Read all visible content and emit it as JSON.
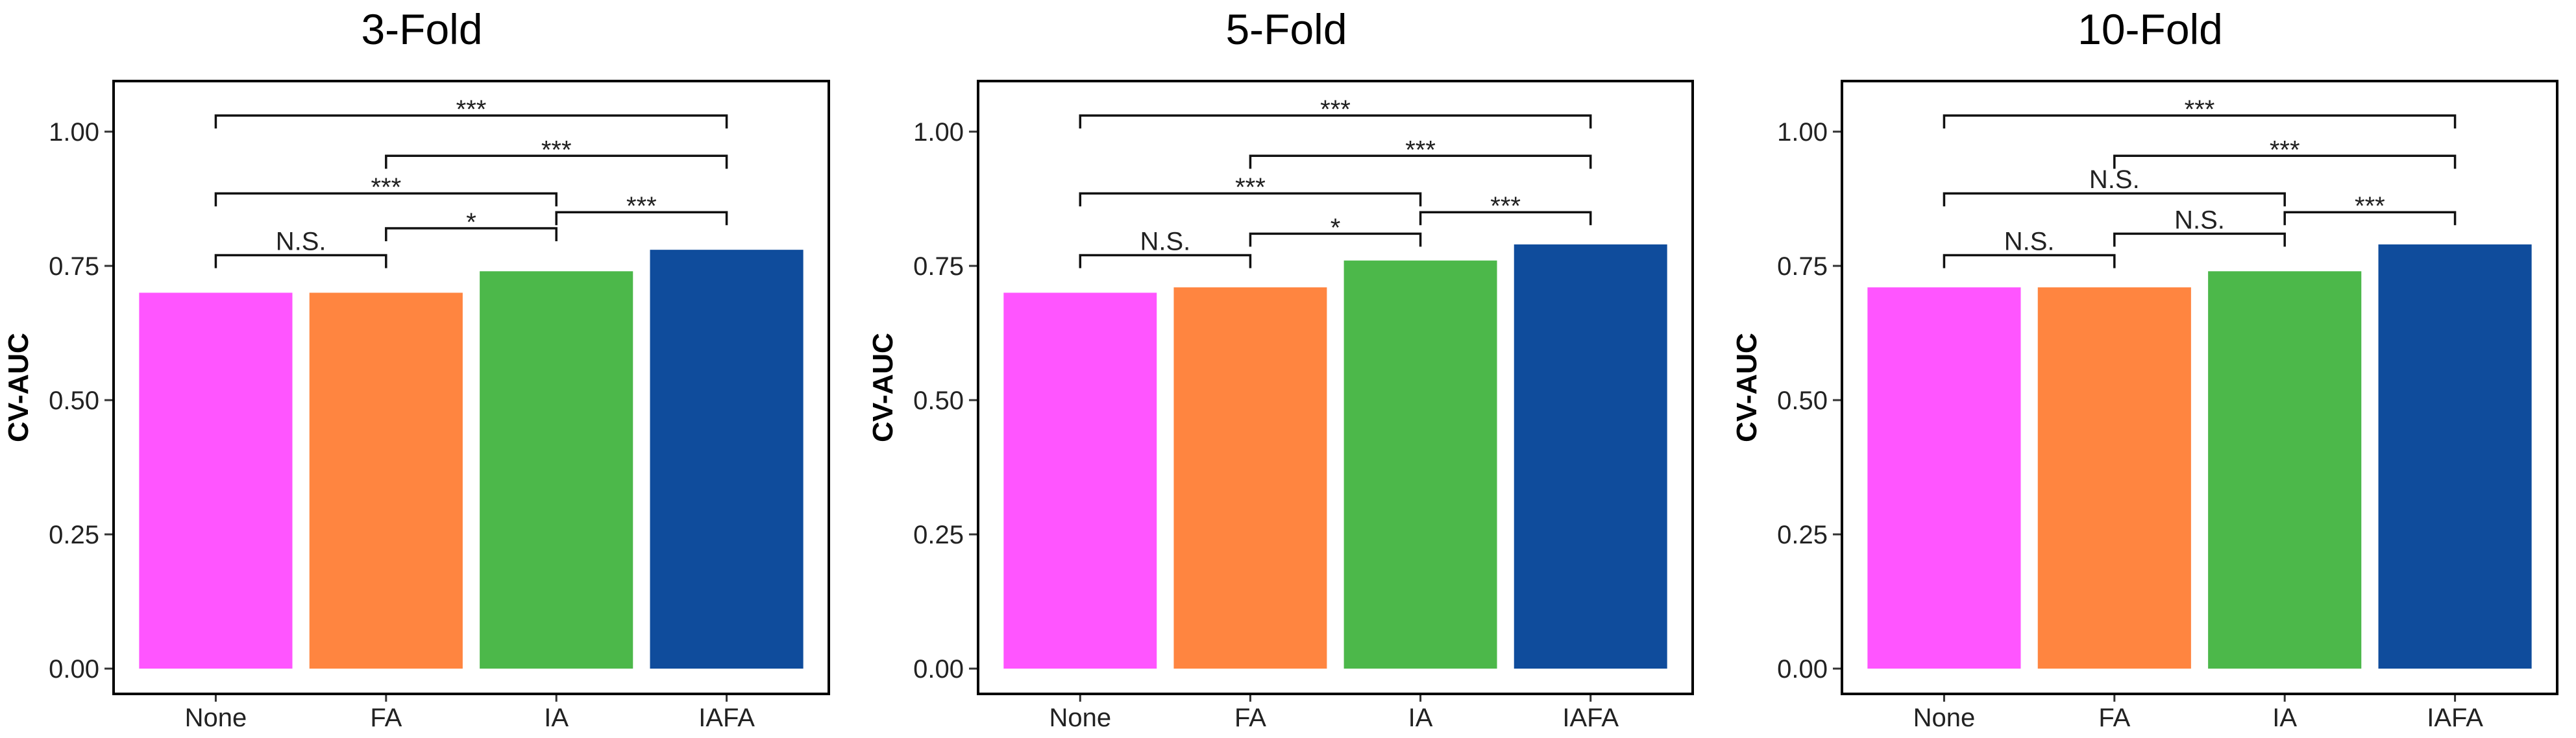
{
  "chart_data": [
    {
      "type": "bar",
      "title": "3-Fold",
      "ylabel": "CV-AUC",
      "xlabel": "",
      "ylim": [
        0,
        1.09
      ],
      "yticks": [
        "0.00",
        "0.25",
        "0.50",
        "0.75",
        "1.00"
      ],
      "categories": [
        "None",
        "FA",
        "IA",
        "IAFA"
      ],
      "values": [
        0.7,
        0.7,
        0.74,
        0.78
      ],
      "colors": [
        "#FF55FF",
        "#FF8540",
        "#4CB84A",
        "#0F4C9C"
      ],
      "comparisons": [
        {
          "from": "None",
          "to": "FA",
          "label": "N.S.",
          "y": 0.77
        },
        {
          "from": "FA",
          "to": "IA",
          "label": "*",
          "y": 0.82
        },
        {
          "from": "IA",
          "to": "IAFA",
          "label": "***",
          "y": 0.85
        },
        {
          "from": "None",
          "to": "IA",
          "label": "***",
          "y": 0.885
        },
        {
          "from": "FA",
          "to": "IAFA",
          "label": "***",
          "y": 0.955
        },
        {
          "from": "None",
          "to": "IAFA",
          "label": "***",
          "y": 1.03
        }
      ]
    },
    {
      "type": "bar",
      "title": "5-Fold",
      "ylabel": "CV-AUC",
      "xlabel": "",
      "ylim": [
        0,
        1.09
      ],
      "yticks": [
        "0.00",
        "0.25",
        "0.50",
        "0.75",
        "1.00"
      ],
      "categories": [
        "None",
        "FA",
        "IA",
        "IAFA"
      ],
      "values": [
        0.7,
        0.71,
        0.76,
        0.79
      ],
      "colors": [
        "#FF55FF",
        "#FF8540",
        "#4CB84A",
        "#0F4C9C"
      ],
      "comparisons": [
        {
          "from": "None",
          "to": "FA",
          "label": "N.S.",
          "y": 0.77
        },
        {
          "from": "FA",
          "to": "IA",
          "label": "*",
          "y": 0.81
        },
        {
          "from": "IA",
          "to": "IAFA",
          "label": "***",
          "y": 0.85
        },
        {
          "from": "None",
          "to": "IA",
          "label": "***",
          "y": 0.885
        },
        {
          "from": "FA",
          "to": "IAFA",
          "label": "***",
          "y": 0.955
        },
        {
          "from": "None",
          "to": "IAFA",
          "label": "***",
          "y": 1.03
        }
      ]
    },
    {
      "type": "bar",
      "title": "10-Fold",
      "ylabel": "CV-AUC",
      "xlabel": "",
      "ylim": [
        0,
        1.09
      ],
      "yticks": [
        "0.00",
        "0.25",
        "0.50",
        "0.75",
        "1.00"
      ],
      "categories": [
        "None",
        "FA",
        "IA",
        "IAFA"
      ],
      "values": [
        0.71,
        0.71,
        0.74,
        0.79
      ],
      "colors": [
        "#FF55FF",
        "#FF8540",
        "#4CB84A",
        "#0F4C9C"
      ],
      "comparisons": [
        {
          "from": "None",
          "to": "FA",
          "label": "N.S.",
          "y": 0.77
        },
        {
          "from": "FA",
          "to": "IA",
          "label": "N.S.",
          "y": 0.81
        },
        {
          "from": "IA",
          "to": "IAFA",
          "label": "***",
          "y": 0.85
        },
        {
          "from": "None",
          "to": "IA",
          "label": "N.S.",
          "y": 0.885
        },
        {
          "from": "FA",
          "to": "IAFA",
          "label": "***",
          "y": 0.955
        },
        {
          "from": "None",
          "to": "IAFA",
          "label": "***",
          "y": 1.03
        }
      ]
    }
  ]
}
